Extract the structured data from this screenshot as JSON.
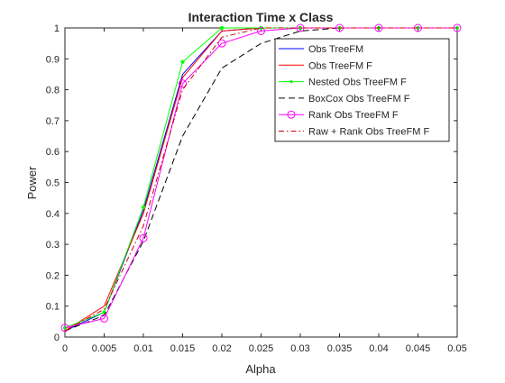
{
  "chart_data": {
    "type": "line",
    "title": "Interaction Time x Class",
    "xlabel": "Alpha",
    "ylabel": "Power",
    "xlim": [
      0,
      0.05
    ],
    "ylim": [
      0,
      1
    ],
    "xticks": [
      0,
      0.005,
      0.01,
      0.015,
      0.02,
      0.025,
      0.03,
      0.035,
      0.04,
      0.045,
      0.05
    ],
    "xtick_labels": [
      "0",
      "0.005",
      "0.01",
      "0.015",
      "0.02",
      "0.025",
      "0.03",
      "0.035",
      "0.04",
      "0.045",
      "0.05"
    ],
    "yticks": [
      0,
      0.1,
      0.2,
      0.3,
      0.4,
      0.5,
      0.6,
      0.7,
      0.8,
      0.9,
      1
    ],
    "ytick_labels": [
      "0",
      "0.1",
      "0.2",
      "0.3",
      "0.4",
      "0.5",
      "0.6",
      "0.7",
      "0.8",
      "0.9",
      "1"
    ],
    "grid": false,
    "legend_position": "top-right",
    "x": [
      0,
      0.005,
      0.01,
      0.015,
      0.02,
      0.025,
      0.03,
      0.035,
      0.04,
      0.045,
      0.05
    ],
    "series": [
      {
        "name": "Obs TreeFM",
        "color": "#0000ff",
        "style": "solid",
        "marker": "none",
        "values": [
          0.02,
          0.08,
          0.41,
          0.85,
          0.99,
          1.0,
          1.0,
          1.0,
          1.0,
          1.0,
          1.0
        ]
      },
      {
        "name": "Obs TreeFM F",
        "color": "#ff0000",
        "style": "solid",
        "marker": "none",
        "values": [
          0.02,
          0.1,
          0.4,
          0.84,
          0.99,
          1.0,
          1.0,
          1.0,
          1.0,
          1.0,
          1.0
        ]
      },
      {
        "name": "Nested Obs TreeFM F",
        "color": "#00ff00",
        "style": "solid",
        "marker": "dot",
        "values": [
          0.03,
          0.08,
          0.42,
          0.89,
          1.0,
          1.0,
          1.0,
          1.0,
          1.0,
          1.0,
          1.0
        ]
      },
      {
        "name": "BoxCox Obs TreeFM F",
        "color": "#000000",
        "style": "dashed",
        "marker": "none",
        "values": [
          0.02,
          0.07,
          0.31,
          0.65,
          0.87,
          0.95,
          0.99,
          1.0,
          1.0,
          1.0,
          1.0
        ]
      },
      {
        "name": "Rank Obs TreeFM F",
        "color": "#ff00ff",
        "style": "solid",
        "marker": "circle",
        "values": [
          0.03,
          0.06,
          0.32,
          0.82,
          0.95,
          0.99,
          1.0,
          1.0,
          1.0,
          1.0,
          1.0
        ]
      },
      {
        "name": "Raw + Rank Obs TreeFM F",
        "color": "#cc0000",
        "style": "dashdot",
        "marker": "none",
        "values": [
          0.02,
          0.09,
          0.36,
          0.8,
          0.97,
          1.0,
          1.0,
          1.0,
          1.0,
          1.0,
          1.0
        ]
      }
    ]
  }
}
